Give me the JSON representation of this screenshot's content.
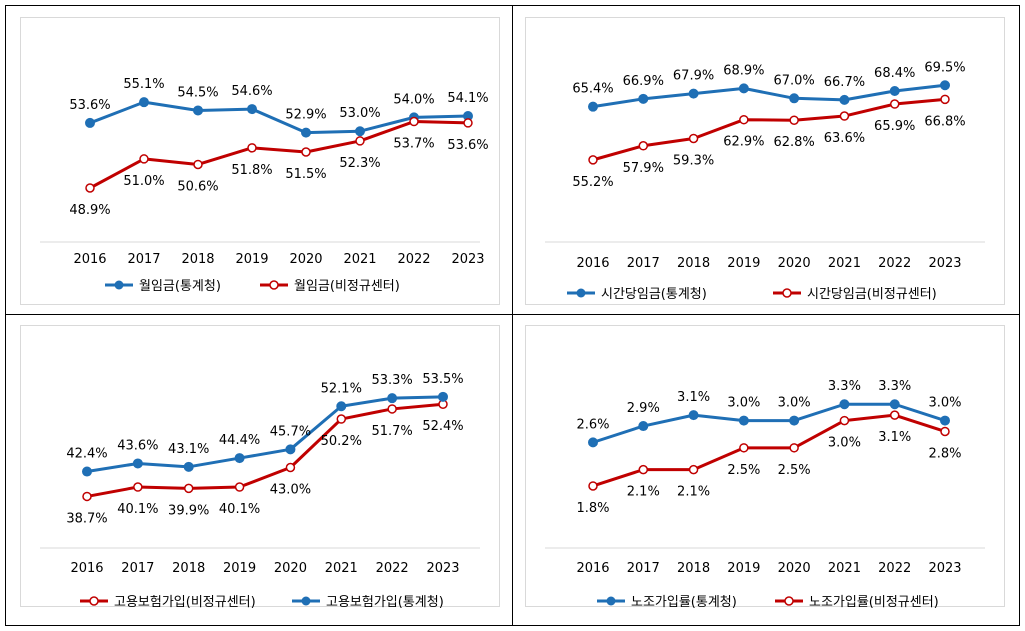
{
  "colors": {
    "blue": "#1f6fb5",
    "red": "#c00000"
  },
  "chart_data": [
    {
      "type": "line",
      "categories": [
        "2016",
        "2017",
        "2018",
        "2019",
        "2020",
        "2021",
        "2022",
        "2023"
      ],
      "ylim": [
        45,
        58
      ],
      "legend_position": "bottom",
      "series": [
        {
          "name": "월임금(통계청)",
          "color": "#1f6fb5",
          "marker": "filled",
          "values": [
            53.6,
            55.1,
            54.5,
            54.6,
            52.9,
            53.0,
            54.0,
            54.1
          ],
          "labels": [
            "53.6%",
            "55.1%",
            "54.5%",
            "54.6%",
            "52.9%",
            "53.0%",
            "54.0%",
            "54.1%"
          ],
          "label_pos": [
            "above",
            "above",
            "above",
            "above",
            "above",
            "above",
            "above",
            "above"
          ]
        },
        {
          "name": "월임금(비정규센터)",
          "color": "#c00000",
          "marker": "hollow",
          "values": [
            48.9,
            51.0,
            50.6,
            51.8,
            51.5,
            52.3,
            53.7,
            53.6
          ],
          "labels": [
            "48.9%",
            "51.0%",
            "50.6%",
            "51.8%",
            "51.5%",
            "52.3%",
            "53.7%",
            "53.6%"
          ],
          "label_pos": [
            "below",
            "below",
            "below",
            "below",
            "below",
            "below",
            "below",
            "below"
          ]
        }
      ]
    },
    {
      "type": "line",
      "categories": [
        "2016",
        "2017",
        "2018",
        "2019",
        "2020",
        "2021",
        "2022",
        "2023"
      ],
      "ylim": [
        50,
        73
      ],
      "legend_position": "bottom",
      "series": [
        {
          "name": "시간당임금(통계청)",
          "color": "#1f6fb5",
          "marker": "filled",
          "values": [
            65.4,
            66.9,
            67.9,
            68.9,
            67.0,
            66.7,
            68.4,
            69.5
          ],
          "labels": [
            "65.4%",
            "66.9%",
            "67.9%",
            "68.9%",
            "67.0%",
            "66.7%",
            "68.4%",
            "69.5%"
          ],
          "label_pos": [
            "above",
            "above",
            "above",
            "above",
            "above",
            "above",
            "above",
            "above"
          ]
        },
        {
          "name": "시간당임금(비정규센터)",
          "color": "#c00000",
          "marker": "hollow",
          "values": [
            55.2,
            57.9,
            59.3,
            62.9,
            62.8,
            63.6,
            65.9,
            66.8
          ],
          "labels": [
            "55.2%",
            "57.9%",
            "59.3%",
            "62.9%",
            "62.8%",
            "63.6%",
            "65.9%",
            "66.8%"
          ],
          "label_pos": [
            "below",
            "below",
            "below",
            "below",
            "below",
            "below",
            "below",
            "below"
          ]
        }
      ]
    },
    {
      "type": "line",
      "categories": [
        "2016",
        "2017",
        "2018",
        "2019",
        "2020",
        "2021",
        "2022",
        "2023"
      ],
      "ylim": [
        30,
        56
      ],
      "legend_position": "bottom",
      "series": [
        {
          "name": "고용보험가입(비정규센터)",
          "color": "#c00000",
          "marker": "hollow",
          "values": [
            38.7,
            40.1,
            39.9,
            40.1,
            43.0,
            50.2,
            51.7,
            52.4
          ],
          "labels": [
            "38.7%",
            "40.1%",
            "39.9%",
            "40.1%",
            "43.0%",
            "50.2%",
            "51.7%",
            "52.4%"
          ],
          "label_pos": [
            "below",
            "below",
            "below",
            "below",
            "below",
            "below",
            "below",
            "below"
          ]
        },
        {
          "name": "고용보험가입(통계청)",
          "color": "#1f6fb5",
          "marker": "filled",
          "values": [
            42.4,
            43.6,
            43.1,
            44.4,
            45.7,
            52.1,
            53.3,
            53.5
          ],
          "labels": [
            "42.4%",
            "43.6%",
            "43.1%",
            "44.4%",
            "45.7%",
            "52.1%",
            "53.3%",
            "53.5%"
          ],
          "label_pos": [
            "above",
            "above",
            "above",
            "above",
            "above",
            "above",
            "above",
            "above"
          ]
        }
      ]
    },
    {
      "type": "line",
      "categories": [
        "2016",
        "2017",
        "2018",
        "2019",
        "2020",
        "2021",
        "2022",
        "2023"
      ],
      "ylim": [
        0.9,
        3.8
      ],
      "legend_position": "bottom",
      "series": [
        {
          "name": "노조가입률(통계청)",
          "color": "#1f6fb5",
          "marker": "filled",
          "values": [
            2.6,
            2.9,
            3.1,
            3.0,
            3.0,
            3.3,
            3.3,
            3.0
          ],
          "labels": [
            "2.6%",
            "2.9%",
            "3.1%",
            "3.0%",
            "3.0%",
            "3.3%",
            "3.3%",
            "3.0%"
          ],
          "label_pos": [
            "above",
            "above",
            "above",
            "above",
            "above",
            "above",
            "above",
            "above"
          ]
        },
        {
          "name": "노조가입률(비정규센터)",
          "color": "#c00000",
          "marker": "hollow",
          "values": [
            1.8,
            2.1,
            2.1,
            2.5,
            2.5,
            3.0,
            3.1,
            2.8
          ],
          "labels": [
            "1.8%",
            "2.1%",
            "2.1%",
            "2.5%",
            "2.5%",
            "3.0%",
            "3.1%",
            "2.8%"
          ],
          "label_pos": [
            "below",
            "below",
            "below",
            "below",
            "below",
            "below",
            "below",
            "below"
          ]
        }
      ]
    }
  ]
}
